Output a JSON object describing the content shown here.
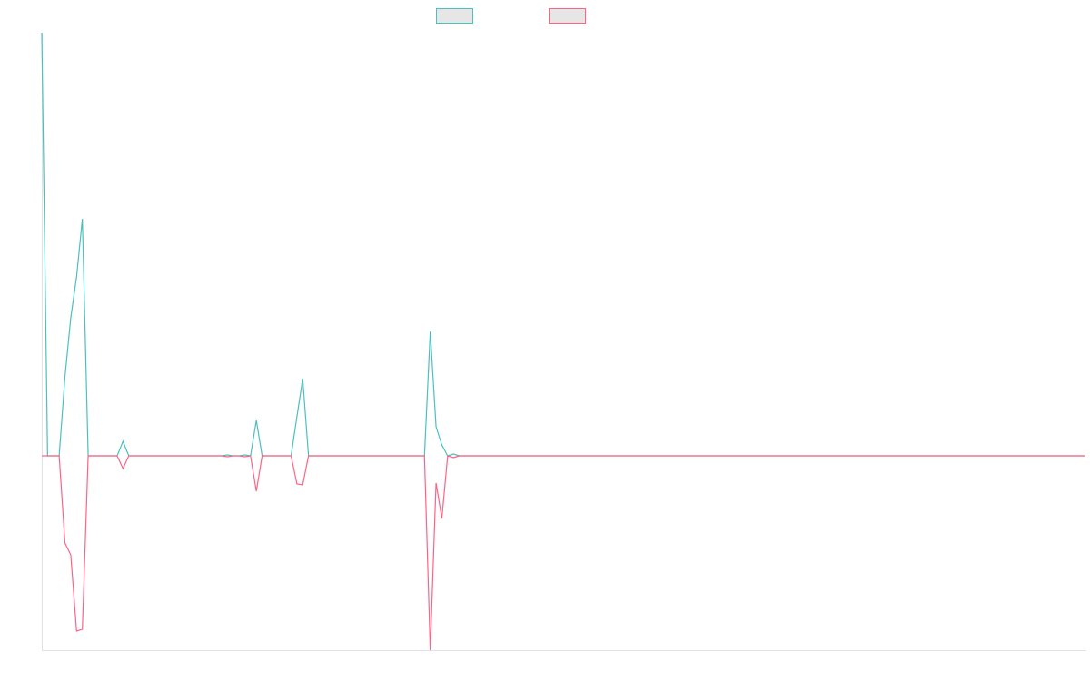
{
  "chart_data": {
    "type": "line",
    "ylim": [
      -214,
      466
    ],
    "series": [
      {
        "color": "#4bc0c0",
        "values": [
          466,
          0,
          0,
          0,
          87,
          152,
          197,
          261,
          0,
          0,
          0,
          0,
          0,
          0,
          16,
          0,
          0,
          0,
          0,
          0,
          0,
          0,
          0,
          0,
          0,
          0,
          0,
          0,
          0,
          0,
          0,
          0,
          1,
          0,
          0,
          1,
          0,
          39,
          0,
          0,
          0,
          0,
          0,
          0,
          43,
          85,
          0,
          0,
          0,
          0,
          0,
          0,
          0,
          0,
          0,
          0,
          0,
          0,
          0,
          0,
          0,
          0,
          0,
          0,
          0,
          0,
          0,
          137,
          32,
          12,
          0,
          2,
          0,
          0,
          0,
          0,
          0,
          0,
          0,
          0,
          0,
          0,
          0,
          0,
          0,
          0,
          0,
          0,
          0,
          0,
          0,
          0,
          0,
          0,
          0,
          0,
          0,
          0,
          0,
          0,
          0,
          0,
          0,
          0,
          0,
          0,
          0,
          0,
          0,
          0,
          0,
          0,
          0,
          0,
          0,
          0,
          0,
          0,
          0,
          0,
          0,
          0,
          0,
          0,
          0,
          0,
          0,
          0,
          0,
          0,
          0,
          0,
          0,
          0,
          0,
          0,
          0,
          0,
          0,
          0,
          0,
          0,
          0,
          0,
          0,
          0,
          0,
          0,
          0,
          0,
          0,
          0,
          0,
          0,
          0,
          0,
          0,
          0,
          0,
          0,
          0,
          0,
          0,
          0,
          0,
          0,
          0,
          0,
          0,
          0,
          0,
          0,
          0,
          0,
          0,
          0,
          0,
          0,
          0,
          0,
          0
        ]
      },
      {
        "color": "#ff6384",
        "values": [
          0,
          0,
          0,
          0,
          -96,
          -109,
          -193,
          -191,
          0,
          0,
          0,
          0,
          0,
          0,
          -14,
          0,
          0,
          0,
          0,
          0,
          0,
          0,
          0,
          0,
          0,
          0,
          0,
          0,
          0,
          0,
          0,
          0,
          -1,
          0,
          0,
          -1,
          0,
          -39,
          0,
          0,
          0,
          0,
          0,
          0,
          -31,
          -32,
          0,
          0,
          0,
          0,
          0,
          0,
          0,
          0,
          0,
          0,
          0,
          0,
          0,
          0,
          0,
          0,
          0,
          0,
          0,
          0,
          0,
          -214,
          -30,
          -69,
          0,
          -2,
          0,
          0,
          0,
          0,
          0,
          0,
          0,
          0,
          0,
          0,
          0,
          0,
          0,
          0,
          0,
          0,
          0,
          0,
          0,
          0,
          0,
          0,
          0,
          0,
          0,
          0,
          0,
          0,
          0,
          0,
          0,
          0,
          0,
          0,
          0,
          0,
          0,
          0,
          0,
          0,
          0,
          0,
          0,
          0,
          0,
          0,
          0,
          0,
          0,
          0,
          0,
          0,
          0,
          0,
          0,
          0,
          0,
          0,
          0,
          0,
          0,
          0,
          0,
          0,
          0,
          0,
          0,
          0,
          0,
          0,
          0,
          0,
          0,
          0,
          0,
          0,
          0,
          0,
          0,
          0,
          0,
          0,
          0,
          0,
          0,
          0,
          0,
          0,
          0,
          0,
          0,
          0,
          0,
          0,
          0,
          0,
          0,
          0,
          0,
          0,
          0,
          0,
          0,
          0,
          0,
          0,
          0,
          0,
          0
        ]
      }
    ]
  }
}
